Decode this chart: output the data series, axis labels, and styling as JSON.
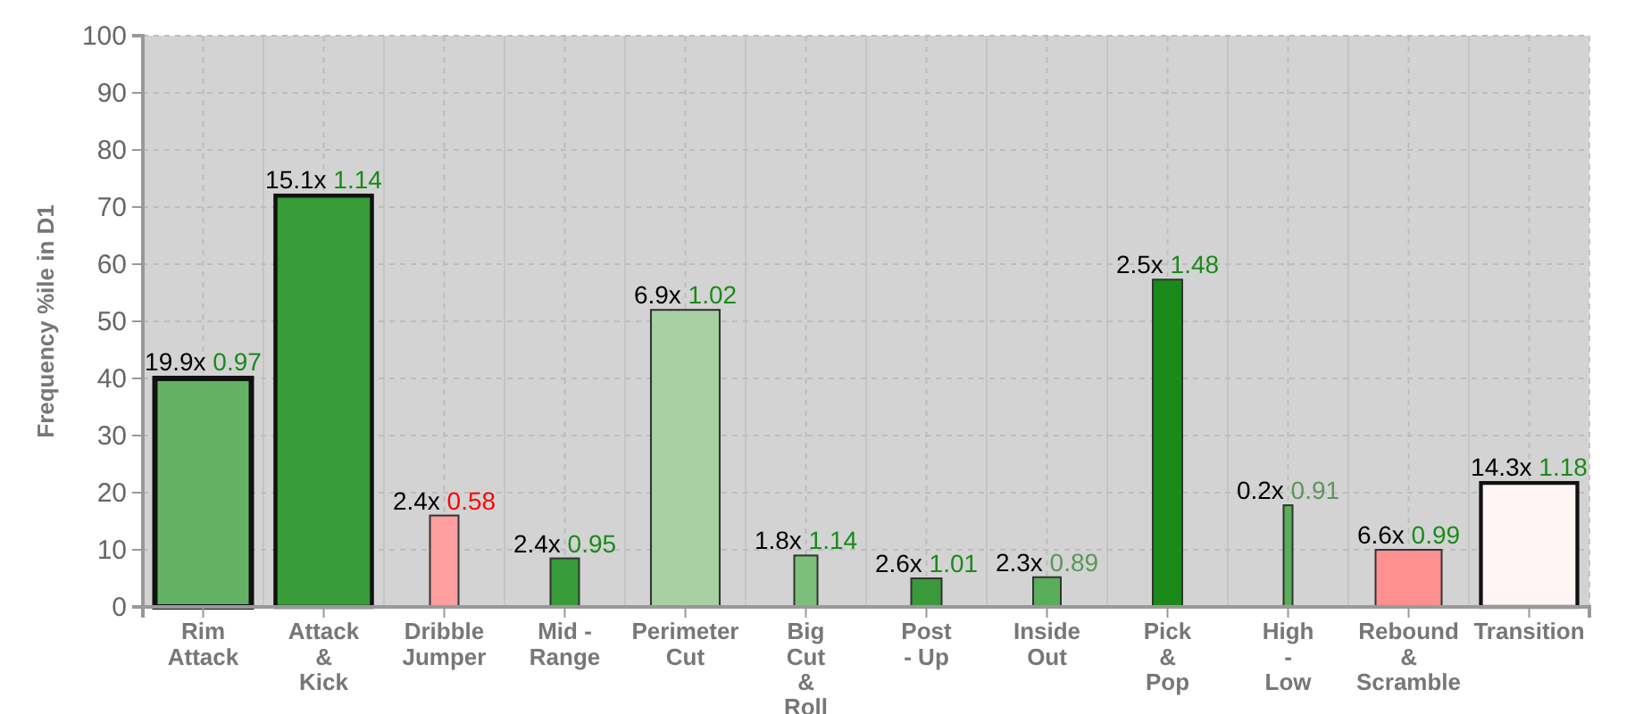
{
  "chart_data": {
    "type": "bar",
    "ylabel": "Frequency %ile in D1",
    "categories": [
      "Rim Attack",
      "Attack & Kick",
      "Dribble Jumper",
      "Mid - Range",
      "Perimeter Cut",
      "Big Cut & Roll",
      "Post - Up",
      "Inside Out",
      "Pick & Pop",
      "High - Low",
      "Rebound & Scramble",
      "Transition"
    ],
    "values": [
      40,
      72,
      16,
      8.5,
      52,
      9,
      5,
      5.2,
      57.3,
      17.8,
      10,
      21.7
    ],
    "colors": [
      "#63b163",
      "#379b37",
      "#ff9f9f",
      "#379b37",
      "#a8d1a3",
      "#7cbf7c",
      "#3a9a3a",
      "#5aad5a",
      "#1a8a1a",
      "#5aad5a",
      "#ff9090",
      "#fff5f5"
    ],
    "annotations": [
      {
        "text": "19.9x 0.97",
        "x": "Rim Attack",
        "y": 40
      },
      {
        "text": "15.1x 1.14",
        "x": "Attack & Kick",
        "y": 72
      },
      {
        "text": "2.4x 0.58",
        "x": "Dribble Jumper",
        "y": 16
      },
      {
        "text": "2.4x 0.95",
        "x": "Mid - Range",
        "y": 8.5
      },
      {
        "text": "6.9x 1.02",
        "x": "Perimeter Cut",
        "y": 52
      },
      {
        "text": "1.8x 1.14",
        "x": "Big Cut & Roll",
        "y": 9
      },
      {
        "text": "2.6x 1.01",
        "x": "Post - Up",
        "y": 5
      },
      {
        "text": "2.3x 0.89",
        "x": "Inside Out",
        "y": 5.2
      },
      {
        "text": "2.5x 1.48",
        "x": "Pick & Pop",
        "y": 57.3
      },
      {
        "text": "0.2x 0.91",
        "x": "High - Low",
        "y": 17.8
      },
      {
        "text": "6.6x 0.99",
        "x": "Rebound & Scramble",
        "y": 10
      },
      {
        "text": "14.3x 1.18",
        "x": "Transition",
        "y": 21.7
      }
    ],
    "ylim": [
      0,
      100
    ],
    "yticks": [
      0,
      10,
      20,
      30,
      40,
      50,
      60,
      70,
      80,
      90,
      100
    ],
    "grid": true
  }
}
